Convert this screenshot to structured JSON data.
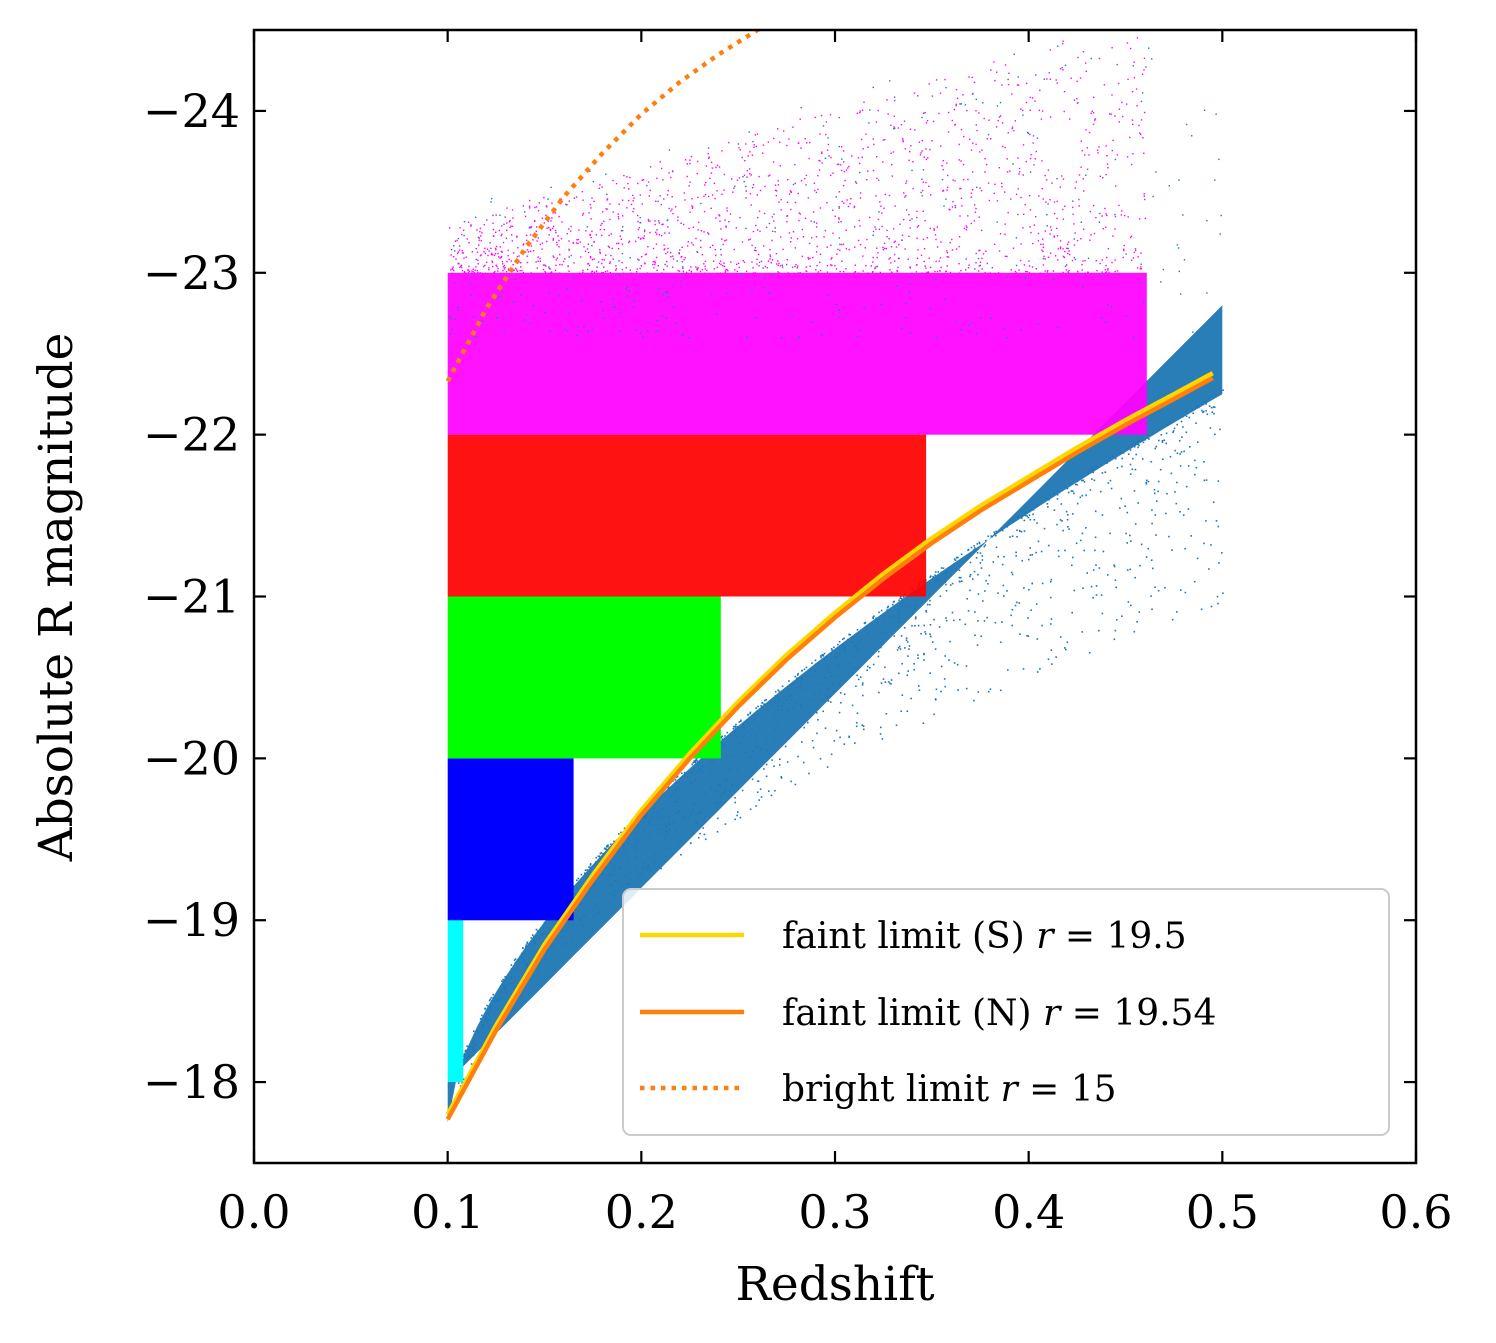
{
  "chart_data": {
    "type": "scatter",
    "xlabel": "Redshift",
    "ylabel": "Absolute R magnitude",
    "xlim": [
      0.0,
      0.6
    ],
    "ylim": [
      -17.5,
      -24.5
    ],
    "y_inverted": true,
    "x_ticks": [
      0.0,
      0.1,
      0.2,
      0.3,
      0.4,
      0.5,
      0.6
    ],
    "x_tick_labels": [
      "0.0",
      "0.1",
      "0.2",
      "0.3",
      "0.4",
      "0.5",
      "0.6"
    ],
    "y_ticks": [
      -18,
      -19,
      -20,
      -21,
      -22,
      -23,
      -24
    ],
    "y_tick_labels": [
      "−18",
      "−19",
      "−20",
      "−21",
      "−22",
      "−23",
      "−24"
    ],
    "grid": false,
    "legend_placement": "lower-right",
    "background_sample": {
      "color": "#1f77b4",
      "z_range": [
        0.1,
        0.5
      ],
      "faint_edge_mag": [
        -17.8,
        -22.3
      ],
      "bright_edge_mag": [
        -18.0,
        -22.8
      ]
    },
    "volume_limited_samples": [
      {
        "color": "#00ffff",
        "z_range": [
          0.1,
          0.108
        ],
        "mag_range": [
          -18,
          -19
        ]
      },
      {
        "color": "#0000ff",
        "z_range": [
          0.1,
          0.165
        ],
        "mag_range": [
          -19,
          -20
        ]
      },
      {
        "color": "#00ff00",
        "z_range": [
          0.1,
          0.241
        ],
        "mag_range": [
          -20,
          -21
        ]
      },
      {
        "color": "#ff0000",
        "z_range": [
          0.1,
          0.347
        ],
        "mag_range": [
          -21,
          -22
        ]
      },
      {
        "color": "#ff00ff",
        "z_range": [
          0.1,
          0.461
        ],
        "mag_range": [
          -22,
          -23
        ]
      }
    ],
    "series": [
      {
        "name": "faint limit (S)",
        "label_math": "r = 19.5",
        "color": "#ffd700",
        "style": "solid",
        "x": [
          0.1,
          0.125,
          0.15,
          0.175,
          0.2,
          0.225,
          0.25,
          0.275,
          0.3,
          0.325,
          0.35,
          0.375,
          0.4,
          0.425,
          0.45,
          0.475,
          0.495
        ],
        "y": [
          -17.8,
          -18.35,
          -18.85,
          -19.28,
          -19.68,
          -20.03,
          -20.35,
          -20.64,
          -20.9,
          -21.14,
          -21.36,
          -21.56,
          -21.74,
          -21.92,
          -22.09,
          -22.25,
          -22.38
        ]
      },
      {
        "name": "faint limit (N)",
        "label_math": "r = 19.54",
        "color": "#ff7f0e",
        "style": "solid",
        "x": [
          0.1,
          0.125,
          0.15,
          0.175,
          0.2,
          0.225,
          0.25,
          0.275,
          0.3,
          0.325,
          0.35,
          0.375,
          0.4,
          0.425,
          0.45,
          0.475,
          0.495
        ],
        "y": [
          -17.77,
          -18.32,
          -18.82,
          -19.25,
          -19.65,
          -20.0,
          -20.32,
          -20.61,
          -20.87,
          -21.11,
          -21.33,
          -21.53,
          -21.71,
          -21.89,
          -22.06,
          -22.22,
          -22.35
        ]
      },
      {
        "name": "bright limit",
        "label_math": "r = 15",
        "color": "#ff7f0e",
        "style": "dotted",
        "x": [
          0.1,
          0.12,
          0.14,
          0.16,
          0.18,
          0.2,
          0.22,
          0.24,
          0.26,
          0.28
        ],
        "y": [
          -22.33,
          -22.78,
          -23.15,
          -23.47,
          -23.74,
          -23.98,
          -24.18,
          -24.35,
          -24.5,
          -24.62
        ]
      }
    ]
  },
  "legend": {
    "items": [
      {
        "text": "faint limit (S) ",
        "var": "r",
        "eq": " = 19.5"
      },
      {
        "text": "faint limit (N) ",
        "var": "r",
        "eq": " = 19.54"
      },
      {
        "text": "bright limit ",
        "var": "r",
        "eq": " = 15"
      }
    ]
  },
  "colors": {
    "axis": "#000000",
    "legend_border": "#cccccc",
    "legend_background": "#ffffff"
  }
}
